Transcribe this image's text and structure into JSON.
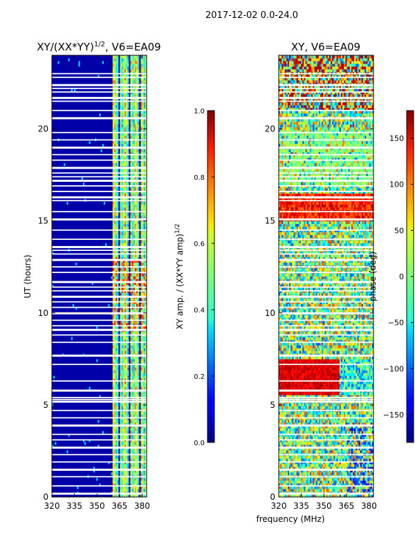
{
  "suptitle": "2017-12-02 0.0-24.0",
  "xlabel": "frequency (MHz)",
  "chart_data": [
    {
      "type": "heatmap",
      "title_main": "XY/(XX*YY)",
      "title_exp": "1/2",
      "title_tail": ", V6=EA09",
      "xlabel": "",
      "ylabel": "UT (hours)",
      "xlim": [
        320,
        383
      ],
      "ylim": [
        0,
        24
      ],
      "xticks": [
        320,
        335,
        350,
        365,
        380
      ],
      "yticks": [
        0,
        5,
        10,
        15,
        20
      ],
      "quantity": "amplitude",
      "colorbar": {
        "label_main": "XY amp. / (XX*YY amp)",
        "label_exp": "1/2",
        "range": [
          0.0,
          1.0
        ],
        "ticks": [
          "0.0",
          "0.2",
          "0.4",
          "0.6",
          "0.8",
          "1.0"
        ],
        "tick_values": [
          0.0,
          0.2,
          0.4,
          0.6,
          0.8,
          1.0
        ]
      }
    },
    {
      "type": "heatmap",
      "title": "XY, V6=EA09",
      "xlabel": "",
      "ylabel": "",
      "xlim": [
        320,
        383
      ],
      "ylim": [
        0,
        24
      ],
      "xticks": [
        320,
        335,
        350,
        365,
        380
      ],
      "yticks": [
        0,
        5,
        10,
        15,
        20
      ],
      "quantity": "phase",
      "colorbar": {
        "label": "phase (deg)",
        "range": [
          -180,
          180
        ],
        "ticks": [
          "−150",
          "−100",
          "−50",
          "0",
          "50",
          "100",
          "150"
        ],
        "tick_values": [
          -150,
          -100,
          -50,
          0,
          50,
          100,
          150
        ]
      }
    }
  ],
  "flagged_hours": [
    0.2,
    0.6,
    1.1,
    1.5,
    1.9,
    2.3,
    2.7,
    3.1,
    3.4,
    3.9,
    4.3,
    4.7,
    5.2,
    5.3,
    5.4,
    5.8,
    6.3,
    7.2,
    7.7,
    8.4,
    8.8,
    9.1,
    9.3,
    9.6,
    10.0,
    10.3,
    10.6,
    10.9,
    11.2,
    11.4,
    11.7,
    12.2,
    12.5,
    12.9,
    13.2,
    13.4,
    13.6,
    14.0,
    14.5,
    15.1,
    15.5,
    16.1,
    16.3,
    16.6,
    16.9,
    17.2,
    17.4,
    17.6,
    17.9,
    18.3,
    18.6,
    19.0,
    19.4,
    19.8,
    20.6,
    21.0,
    21.5,
    21.7,
    22.0,
    22.2,
    22.4,
    22.8,
    23.0
  ]
}
